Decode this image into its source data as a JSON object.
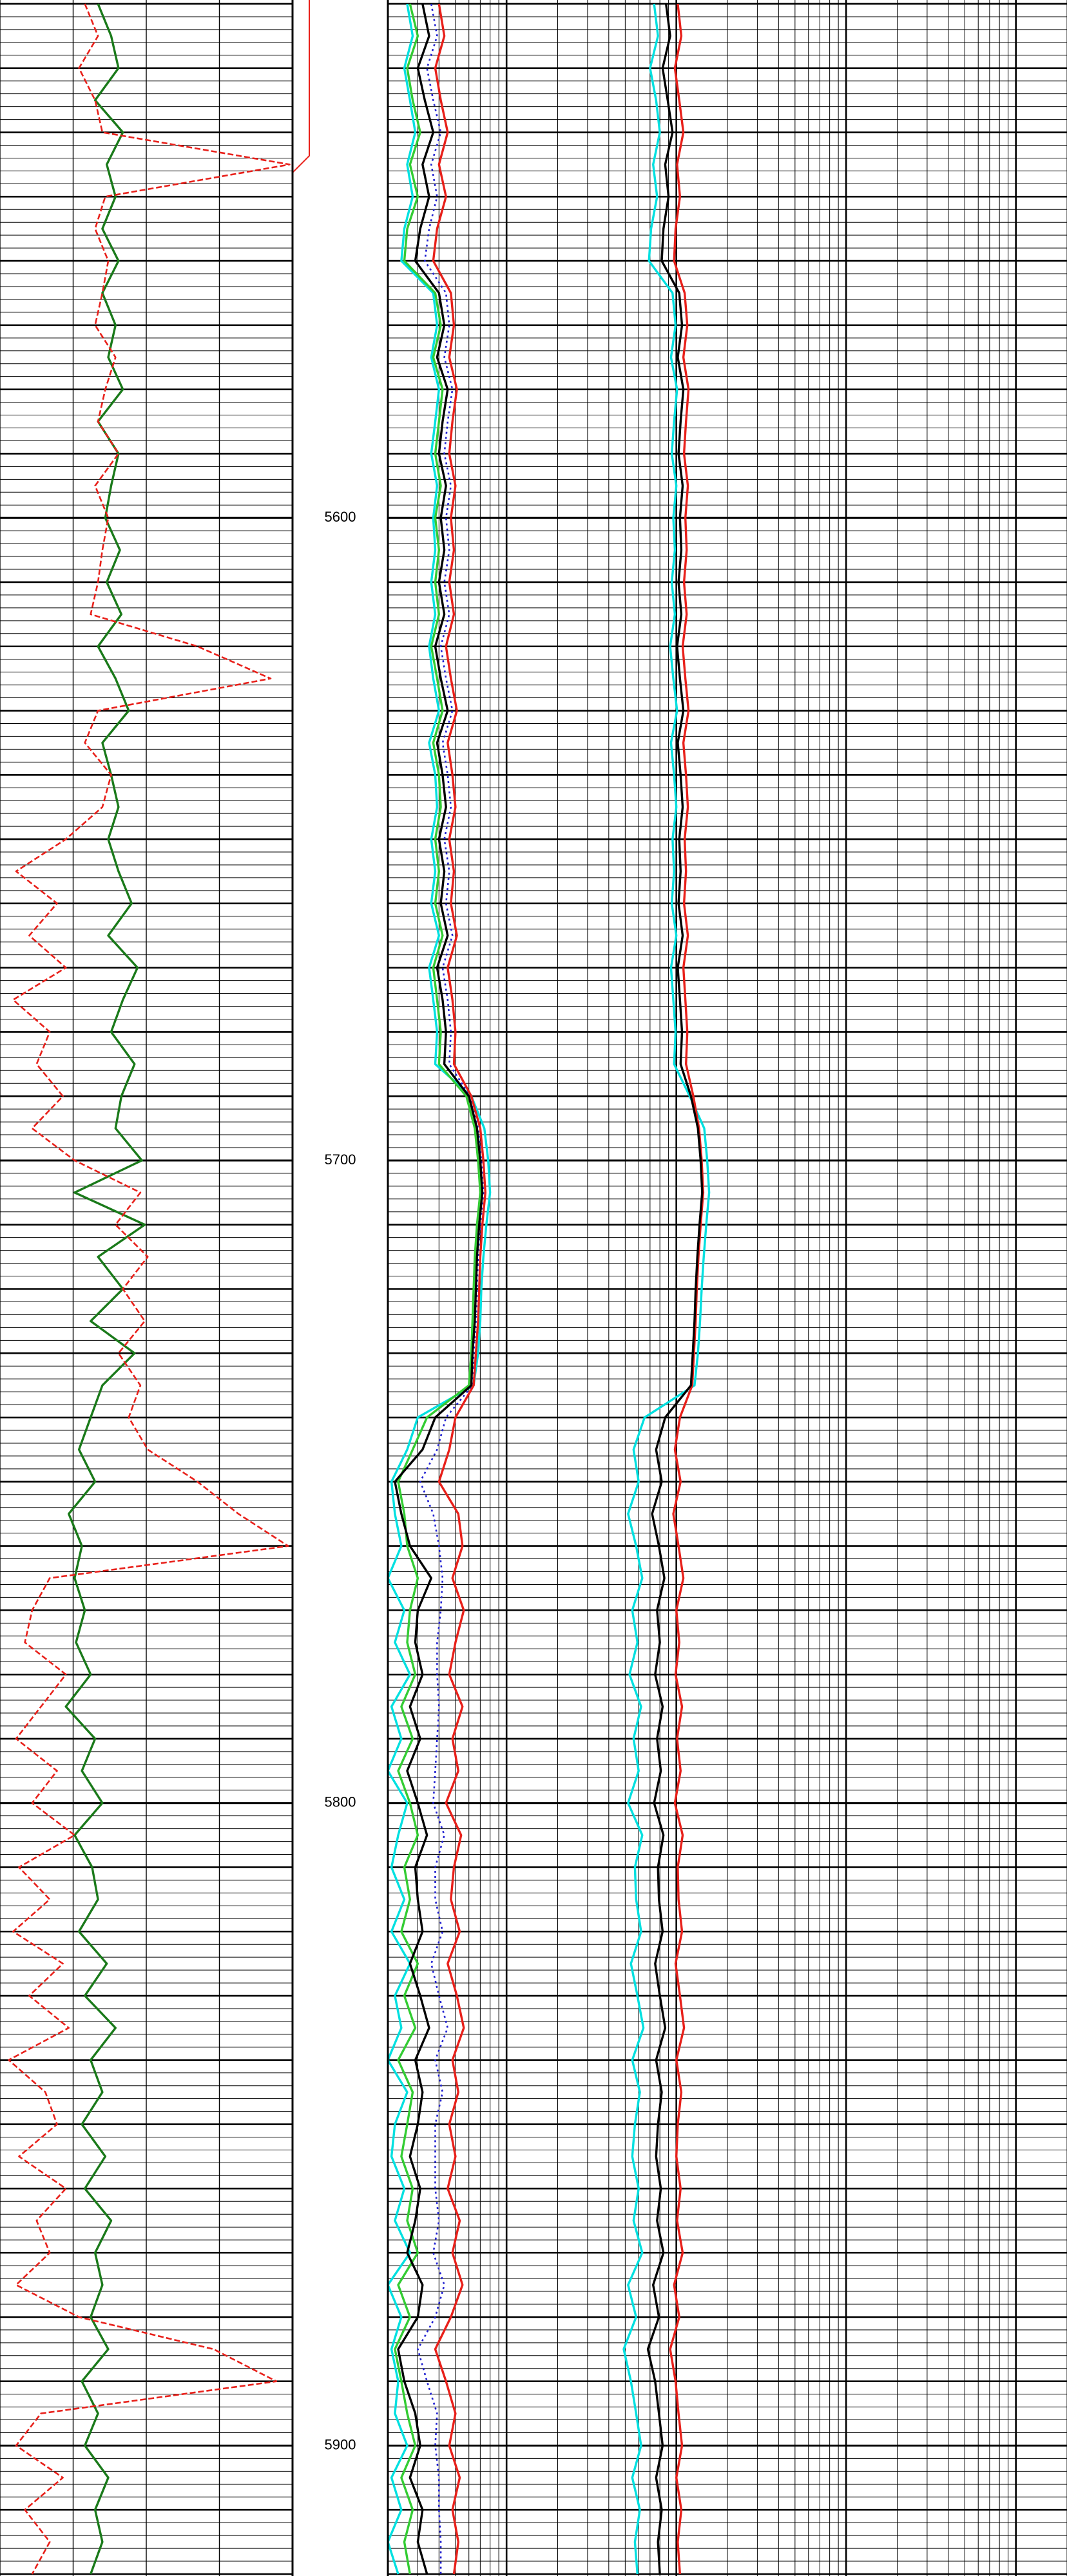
{
  "chart_data": {
    "type": "well-log",
    "ylim": [
      5519.4,
      5920.3
    ],
    "yticks": [
      5600,
      5700,
      5800,
      5900
    ],
    "depth": [
      5520,
      5525,
      5530,
      5535,
      5540,
      5545,
      5550,
      5555,
      5560,
      5565,
      5570,
      5575,
      5580,
      5585,
      5590,
      5595,
      5600,
      5605,
      5610,
      5615,
      5620,
      5625,
      5630,
      5635,
      5640,
      5645,
      5650,
      5655,
      5660,
      5665,
      5670,
      5675,
      5680,
      5685,
      5690,
      5695,
      5700,
      5705,
      5710,
      5715,
      5720,
      5725,
      5730,
      5735,
      5740,
      5745,
      5750,
      5755,
      5760,
      5765,
      5770,
      5775,
      5780,
      5785,
      5790,
      5795,
      5800,
      5805,
      5810,
      5815,
      5820,
      5825,
      5830,
      5835,
      5840,
      5845,
      5850,
      5855,
      5860,
      5865,
      5870,
      5875,
      5880,
      5885,
      5890,
      5895,
      5900,
      5905,
      5910,
      5915,
      5920
    ],
    "tracks": [
      {
        "xlim": [
          0,
          200
        ],
        "log_scale": false,
        "series": [
          {
            "color": "#1a7a1a",
            "line_style": "solid",
            "values": [
              67,
              76,
              81,
              65,
              84,
              73,
              79,
              70,
              81,
              70,
              79,
              74,
              84,
              67,
              81,
              76,
              72,
              82,
              73,
              83,
              67,
              79,
              88,
              70,
              76,
              81,
              74,
              81,
              90,
              74,
              94,
              84,
              76,
              92,
              83,
              79,
              97,
              51,
              99,
              67,
              84,
              62,
              92,
              70,
              62,
              54,
              65,
              47,
              56,
              51,
              58,
              52,
              62,
              45,
              65,
              56,
              70,
              51,
              63,
              67,
              54,
              73,
              58,
              79,
              62,
              70,
              56,
              72,
              58,
              76,
              65,
              70,
              62,
              74,
              56,
              67,
              58,
              74,
              65,
              70,
              62
            ]
          },
          {
            "color": "#e8201a",
            "line_style": "dashed",
            "values": [
              58,
              67,
              54,
              65,
              70,
              198,
              72,
              65,
              74,
              70,
              65,
              79,
              72,
              67,
              81,
              65,
              74,
              70,
              67,
              62,
              135,
              185,
              67,
              58,
              76,
              70,
              45,
              11,
              39,
              20,
              45,
              9,
              34,
              25,
              43,
              22,
              51,
              96,
              79,
              101,
              84,
              99,
              81,
              96,
              88,
              101,
              135,
              163,
              197,
              34,
              22,
              17,
              45,
              28,
              11,
              39,
              22,
              51,
              13,
              34,
              9,
              43,
              20,
              47,
              6,
              31,
              39,
              13,
              45,
              25,
              34,
              11,
              54,
              146,
              189,
              28,
              11,
              43,
              17,
              34,
              22
            ]
          }
        ]
      },
      {
        "xlim": [
          0.2,
          2000
        ],
        "log_scale": true,
        "series": [
          {
            "color": "#00e0e0",
            "line_style": "solid",
            "values": [
              0.26,
              0.28,
              0.25,
              0.27,
              0.29,
              0.26,
              0.28,
              0.25,
              0.24,
              0.37,
              0.39,
              0.36,
              0.4,
              0.38,
              0.36,
              0.39,
              0.37,
              0.38,
              0.36,
              0.38,
              0.35,
              0.37,
              0.4,
              0.35,
              0.38,
              0.39,
              0.36,
              0.38,
              0.36,
              0.4,
              0.35,
              0.37,
              0.39,
              0.38,
              0.62,
              0.74,
              0.78,
              0.8,
              0.76,
              0.73,
              0.71,
              0.7,
              0.68,
              0.64,
              0.3,
              0.26,
              0.21,
              0.22,
              0.24,
              0.2,
              0.25,
              0.22,
              0.27,
              0.21,
              0.24,
              0.2,
              0.26,
              0.23,
              0.21,
              0.25,
              0.21,
              0.27,
              0.22,
              0.24,
              0.2,
              0.26,
              0.22,
              0.21,
              0.25,
              0.22,
              0.27,
              0.2,
              0.24,
              0.21,
              0.23,
              0.22,
              0.26,
              0.21,
              0.24,
              0.2,
              0.23
            ]
          },
          {
            "color": "#33cc33",
            "line_style": "solid",
            "values": [
              0.27,
              0.3,
              0.26,
              0.28,
              0.31,
              0.27,
              0.3,
              0.26,
              0.25,
              0.38,
              0.41,
              0.37,
              0.42,
              0.4,
              0.38,
              0.41,
              0.38,
              0.4,
              0.38,
              0.4,
              0.36,
              0.39,
              0.42,
              0.37,
              0.4,
              0.41,
              0.38,
              0.4,
              0.38,
              0.42,
              0.37,
              0.39,
              0.41,
              0.4,
              0.58,
              0.65,
              0.68,
              0.7,
              0.67,
              0.65,
              0.64,
              0.63,
              0.62,
              0.6,
              0.34,
              0.28,
              0.23,
              0.25,
              0.26,
              0.3,
              0.27,
              0.26,
              0.29,
              0.24,
              0.28,
              0.23,
              0.27,
              0.3,
              0.25,
              0.27,
              0.24,
              0.3,
              0.25,
              0.29,
              0.23,
              0.28,
              0.26,
              0.24,
              0.28,
              0.26,
              0.3,
              0.23,
              0.27,
              0.22,
              0.24,
              0.26,
              0.29,
              0.24,
              0.28,
              0.25,
              0.27
            ]
          },
          {
            "color": "#2020d0",
            "line_style": "dotted",
            "values": [
              0.36,
              0.39,
              0.34,
              0.37,
              0.41,
              0.36,
              0.39,
              0.35,
              0.33,
              0.44,
              0.46,
              0.43,
              0.48,
              0.45,
              0.43,
              0.47,
              0.44,
              0.46,
              0.43,
              0.46,
              0.41,
              0.44,
              0.48,
              0.42,
              0.45,
              0.47,
              0.43,
              0.46,
              0.44,
              0.48,
              0.42,
              0.45,
              0.47,
              0.46,
              0.61,
              0.68,
              0.71,
              0.73,
              0.7,
              0.68,
              0.67,
              0.66,
              0.64,
              0.63,
              0.44,
              0.39,
              0.31,
              0.37,
              0.4,
              0.42,
              0.41,
              0.39,
              0.39,
              0.4,
              0.39,
              0.38,
              0.37,
              0.43,
              0.38,
              0.38,
              0.42,
              0.36,
              0.4,
              0.45,
              0.38,
              0.42,
              0.38,
              0.38,
              0.38,
              0.4,
              0.37,
              0.43,
              0.38,
              0.3,
              0.34,
              0.39,
              0.38,
              0.4,
              0.4,
              0.41,
              0.41
            ]
          },
          {
            "color": "#e8201a",
            "line_style": "solid",
            "values": [
              0.4,
              0.43,
              0.38,
              0.41,
              0.45,
              0.4,
              0.44,
              0.39,
              0.37,
              0.47,
              0.49,
              0.46,
              0.51,
              0.48,
              0.46,
              0.5,
              0.47,
              0.49,
              0.46,
              0.49,
              0.44,
              0.47,
              0.51,
              0.45,
              0.48,
              0.5,
              0.46,
              0.49,
              0.47,
              0.51,
              0.45,
              0.48,
              0.5,
              0.49,
              0.62,
              0.7,
              0.73,
              0.75,
              0.72,
              0.7,
              0.69,
              0.68,
              0.66,
              0.64,
              0.5,
              0.46,
              0.4,
              0.52,
              0.55,
              0.48,
              0.56,
              0.5,
              0.46,
              0.55,
              0.48,
              0.52,
              0.44,
              0.54,
              0.49,
              0.47,
              0.53,
              0.45,
              0.51,
              0.56,
              0.48,
              0.52,
              0.46,
              0.5,
              0.45,
              0.53,
              0.48,
              0.55,
              0.47,
              0.38,
              0.44,
              0.5,
              0.46,
              0.53,
              0.48,
              0.52,
              0.49
            ]
          },
          {
            "color": "#000000",
            "line_style": "solid",
            "values": [
              0.32,
              0.35,
              0.3,
              0.33,
              0.37,
              0.32,
              0.35,
              0.31,
              0.29,
              0.4,
              0.43,
              0.39,
              0.45,
              0.42,
              0.4,
              0.44,
              0.41,
              0.43,
              0.4,
              0.43,
              0.38,
              0.41,
              0.45,
              0.39,
              0.42,
              0.44,
              0.4,
              0.43,
              0.41,
              0.45,
              0.39,
              0.42,
              0.44,
              0.43,
              0.6,
              0.67,
              0.7,
              0.72,
              0.69,
              0.67,
              0.66,
              0.65,
              0.63,
              0.62,
              0.38,
              0.32,
              0.22,
              0.24,
              0.27,
              0.36,
              0.3,
              0.29,
              0.32,
              0.27,
              0.31,
              0.26,
              0.3,
              0.34,
              0.29,
              0.3,
              0.32,
              0.27,
              0.31,
              0.35,
              0.29,
              0.32,
              0.3,
              0.27,
              0.31,
              0.29,
              0.26,
              0.32,
              0.3,
              0.23,
              0.25,
              0.29,
              0.31,
              0.27,
              0.32,
              0.3,
              0.34
            ]
          },
          {
            "color": "#00e0e0",
            "line_style": "solid",
            "values": [
              7.4,
              7.8,
              7.0,
              7.6,
              8.0,
              7.3,
              7.7,
              7.1,
              6.9,
              9.5,
              9.9,
              9.3,
              10.1,
              9.7,
              9.4,
              10.0,
              9.6,
              9.8,
              9.4,
              9.8,
              9.2,
              9.6,
              10.1,
              9.3,
              9.7,
              10.0,
              9.5,
              9.7,
              9.4,
              10.0,
              9.3,
              9.6,
              9.9,
              9.7,
              12.0,
              14.6,
              15.2,
              15.6,
              15.0,
              14.5,
              14.1,
              13.8,
              13.4,
              12.8,
              6.5,
              5.6,
              6.0,
              5.2,
              5.8,
              6.3,
              5.5,
              5.9,
              5.3,
              6.2,
              5.6,
              6.0,
              5.2,
              6.3,
              5.7,
              5.8,
              6.2,
              5.4,
              5.9,
              6.4,
              5.5,
              6.1,
              5.7,
              5.5,
              6.0,
              5.6,
              6.3,
              5.2,
              5.8,
              4.9,
              5.4,
              5.8,
              6.2,
              5.5,
              6.1,
              5.7,
              5.9
            ]
          },
          {
            "color": "#e8201a",
            "line_style": "solid",
            "values": [
              10.2,
              10.7,
              9.8,
              10.4,
              11.0,
              10.1,
              10.5,
              9.9,
              9.7,
              11.2,
              11.6,
              11.0,
              11.8,
              11.4,
              11.1,
              11.7,
              11.3,
              11.5,
              11.1,
              11.5,
              10.9,
              11.3,
              11.8,
              11.0,
              11.4,
              11.7,
              11.2,
              11.4,
              11.1,
              11.7,
              11.0,
              11.3,
              11.6,
              11.4,
              12.6,
              13.6,
              14.1,
              14.4,
              13.9,
              13.5,
              13.2,
              13.0,
              12.7,
              12.4,
              10.5,
              9.8,
              10.6,
              9.6,
              10.3,
              11.0,
              10.0,
              10.4,
              9.9,
              10.8,
              10.1,
              10.6,
              9.8,
              10.9,
              10.2,
              10.3,
              10.8,
              9.9,
              10.5,
              11.1,
              10.0,
              10.7,
              10.2,
              10.0,
              10.6,
              10.1,
              10.9,
              9.7,
              10.4,
              9.2,
              9.9,
              10.3,
              10.8,
              10.0,
              10.7,
              10.2,
              10.5
            ]
          },
          {
            "color": "#000000",
            "line_style": "solid",
            "values": [
              8.7,
              9.2,
              8.3,
              8.9,
              9.5,
              8.6,
              9.0,
              8.4,
              8.2,
              10.4,
              10.8,
              10.2,
              11.0,
              10.6,
              10.3,
              10.9,
              10.5,
              10.7,
              10.3,
              10.7,
              10.1,
              10.5,
              11.0,
              10.2,
              10.6,
              10.9,
              10.4,
              10.6,
              10.3,
              10.9,
              10.2,
              10.5,
              10.8,
              10.6,
              12.2,
              13.4,
              13.9,
              14.2,
              13.7,
              13.3,
              13.0,
              12.8,
              12.5,
              12.2,
              8.6,
              7.6,
              8.2,
              7.2,
              7.9,
              8.5,
              7.7,
              8.0,
              7.5,
              8.3,
              7.7,
              8.1,
              7.4,
              8.4,
              7.8,
              7.9,
              8.3,
              7.5,
              8.0,
              8.6,
              7.6,
              8.2,
              7.8,
              7.6,
              8.1,
              7.7,
              8.4,
              7.3,
              7.9,
              6.8,
              7.5,
              7.9,
              8.3,
              7.6,
              8.2,
              7.8,
              8.0
            ]
          }
        ]
      }
    ]
  }
}
